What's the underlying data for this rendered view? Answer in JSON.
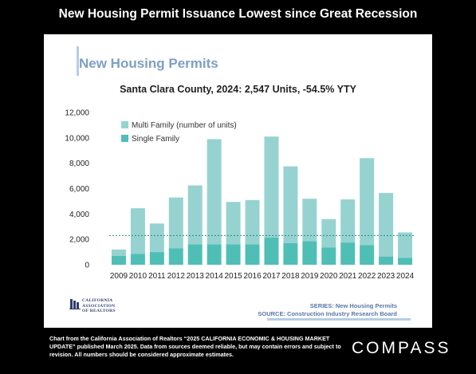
{
  "page": {
    "headline": "New Housing Permit Issuance Lowest since Great Recession",
    "footnote": "Chart from the California Association of Realtors “2025 CALIFORNIA ECONOMIC & HOUSING MARKET UPDATE” published March 2025. Data from sources deemed reliable, but may contain errors and subject to revision. All numbers should be considered approximate estimates.",
    "brand": "COMPASS"
  },
  "panel": {
    "title": "New Housing Permits",
    "logo_lines": [
      "CALIFORNIA",
      "ASSOCIATION",
      "OF REALTORS"
    ],
    "series_note": "SERIES: New Housing Permits",
    "source_note": "SOURCE:  Construction Industry Research Board"
  },
  "colors": {
    "multi_family": "#96d3d0",
    "single_family": "#4fbfb6",
    "reference_line": "#2b8a83",
    "title_blue": "#7d9fc6"
  },
  "chart_data": {
    "type": "bar",
    "stacked": true,
    "title": "Santa Clara County, 2024: 2,547 Units, -54.5% YTY",
    "categories": [
      "2009",
      "2010",
      "2011",
      "2012",
      "2013",
      "2014",
      "2015",
      "2016",
      "2017",
      "2018",
      "2019",
      "2020",
      "2021",
      "2022",
      "2023",
      "2024"
    ],
    "series": [
      {
        "name": "Single Family",
        "values": [
          700,
          850,
          1000,
          1300,
          1600,
          1600,
          1600,
          1600,
          2150,
          1700,
          1850,
          1350,
          1750,
          1550,
          650,
          550
        ]
      },
      {
        "name": "Multi Family (number of units)",
        "values": [
          500,
          3600,
          2250,
          4000,
          4650,
          8300,
          3350,
          3500,
          7950,
          6050,
          3350,
          2250,
          3400,
          6850,
          5000,
          1997
        ]
      }
    ],
    "reference_line": {
      "value": 2300,
      "style": "dashed"
    },
    "ylim": [
      0,
      12000
    ],
    "yticks": [
      "0",
      "2,000",
      "4,000",
      "6,000",
      "8,000",
      "10,000",
      "12,000"
    ],
    "ytick_values": [
      0,
      2000,
      4000,
      6000,
      8000,
      10000,
      12000
    ],
    "legend": "top-left",
    "grid": false
  }
}
